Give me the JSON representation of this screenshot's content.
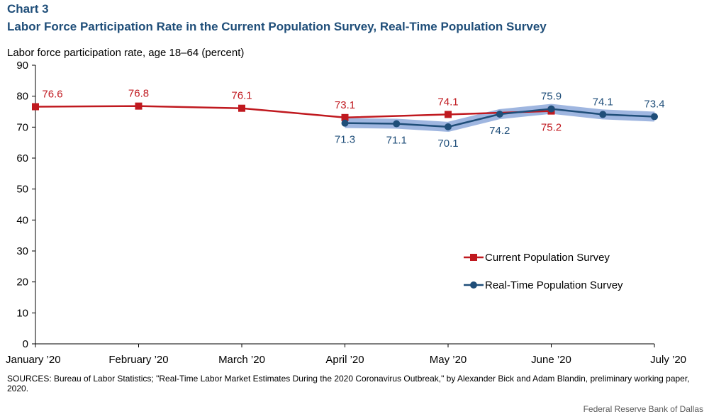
{
  "header": {
    "chart_label": "Chart 3",
    "title": "Labor Force Participation Rate in the Current Population Survey, Real-Time Population Survey"
  },
  "colors": {
    "cps": "#c0191f",
    "rps": "#1f4e79",
    "rps_band": "#8ea9db",
    "title": "#1f4e79"
  },
  "chart_data": {
    "type": "line",
    "title": "Labor Force Participation Rate in the Current Population Survey, Real-Time Population Survey",
    "ylabel": "Labor force participation rate, age 18–64 (percent)",
    "ylim": [
      0,
      90
    ],
    "yticks": [
      0,
      10,
      20,
      30,
      40,
      50,
      60,
      70,
      80,
      90
    ],
    "xlim": [
      0,
      6
    ],
    "xticks": [
      {
        "value": 0,
        "label": "January ’20"
      },
      {
        "value": 1,
        "label": "February ’20"
      },
      {
        "value": 2,
        "label": "March ’20"
      },
      {
        "value": 3,
        "label": "April ’20"
      },
      {
        "value": 4,
        "label": "May ’20"
      },
      {
        "value": 5,
        "label": "June ’20"
      },
      {
        "value": 6,
        "label": "July ’20"
      }
    ],
    "grid": false,
    "legend": "lower-right",
    "series": [
      {
        "name": "Current Population Survey",
        "marker": "square",
        "x": [
          0,
          1,
          2,
          3,
          4,
          5
        ],
        "values": [
          76.6,
          76.8,
          76.1,
          73.1,
          74.1,
          75.2
        ],
        "labels": [
          "76.6",
          "76.8",
          "76.1",
          "73.1",
          "74.1",
          "75.2"
        ],
        "label_pos": [
          "above",
          "above",
          "above",
          "above",
          "above",
          "below"
        ]
      },
      {
        "name": "Real-Time Population Survey",
        "marker": "circle",
        "x": [
          3,
          3.5,
          4,
          4.5,
          5,
          5.5,
          6
        ],
        "values": [
          71.3,
          71.1,
          70.1,
          74.2,
          75.9,
          74.1,
          73.4
        ],
        "labels": [
          "71.3",
          "71.1",
          "70.1",
          "74.2",
          "75.9",
          "74.1",
          "73.4"
        ],
        "label_pos": [
          "below",
          "below",
          "below",
          "below",
          "above",
          "above",
          "above"
        ]
      }
    ]
  },
  "footer": {
    "sources": "SOURCES: Bureau of Labor Statistics; \"Real-Time Labor Market Estimates During the 2020 Coronavirus Outbreak,\" by Alexander Bick and Adam Blandin, preliminary working paper, 2020.",
    "credit": "Federal Reserve Bank of Dallas"
  }
}
